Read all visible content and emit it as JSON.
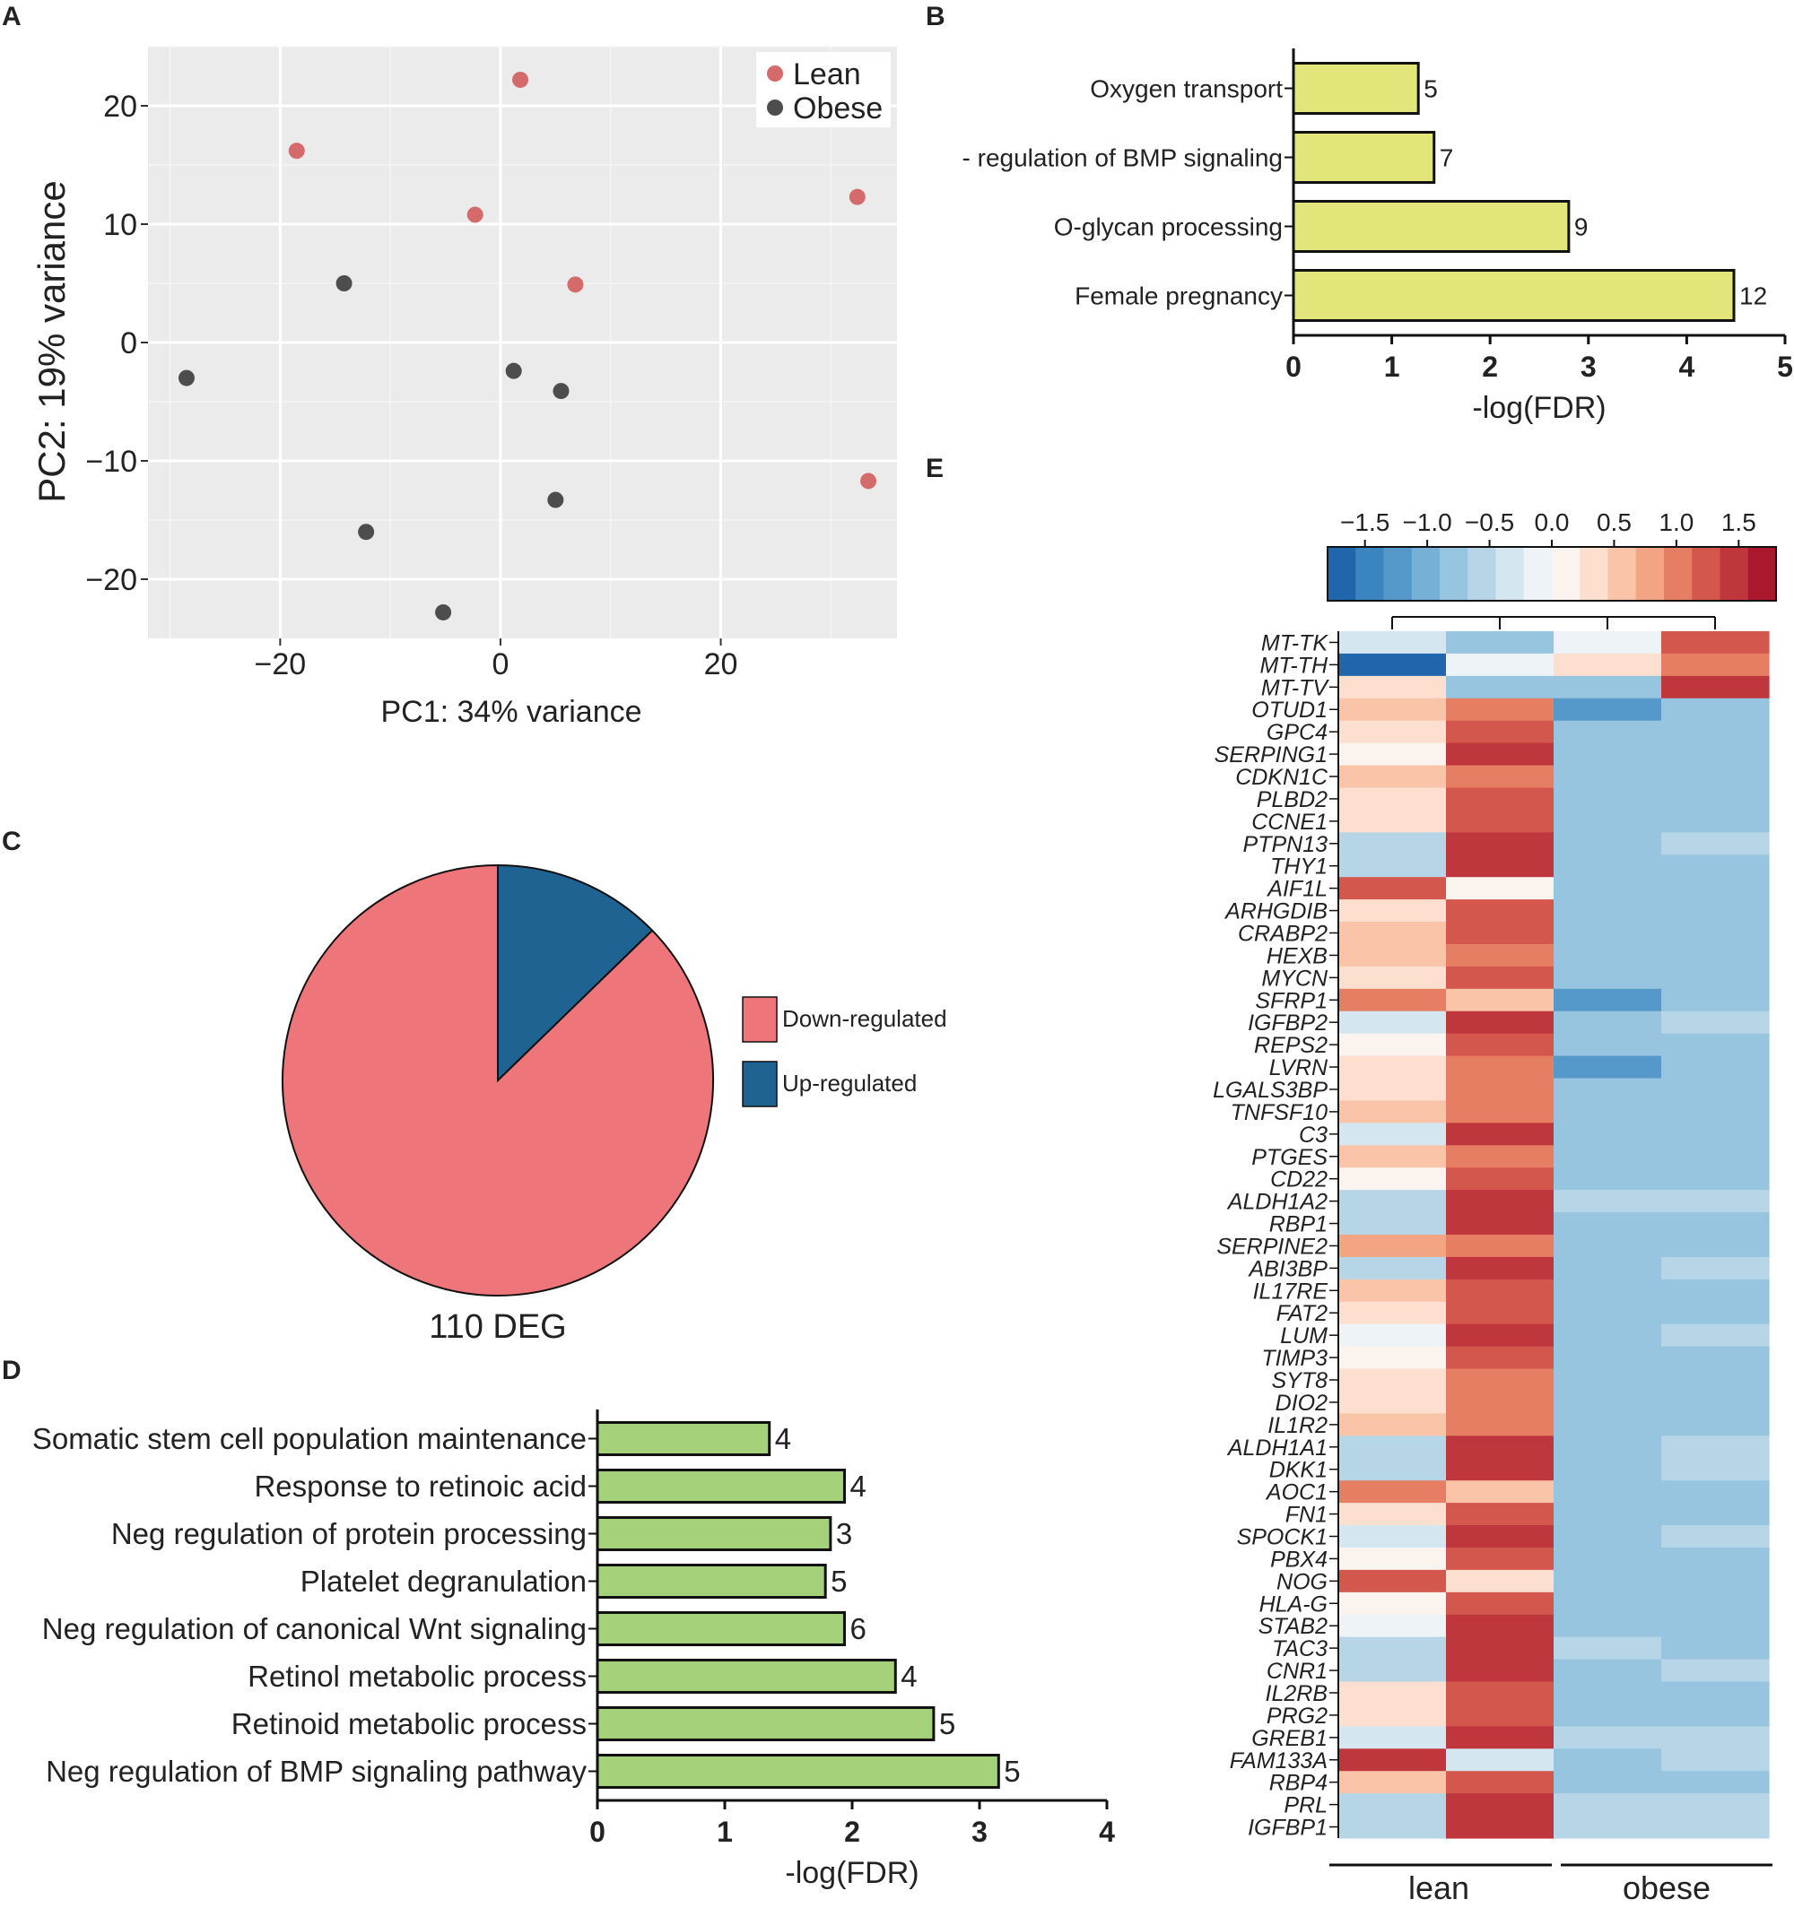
{
  "panel_labels": {
    "a": "A",
    "b": "B",
    "c": "C",
    "d": "D",
    "e": "E"
  },
  "colors": {
    "lean": "#D46A6A",
    "obese": "#4D4D4D",
    "panel_bg": "#EBEBEB",
    "bar_b": "#E2E67A",
    "bar_d": "#A5D17A",
    "pie_down": "#EE7579",
    "pie_up": "#1F6393",
    "heat_scale": [
      "#2166AC",
      "#3A84C0",
      "#5499CA",
      "#76B0D6",
      "#97C4DF",
      "#B6D6E8",
      "#D4E6F0",
      "#EDF3F7",
      "#FAF3EE",
      "#FCDFCF",
      "#F9C4A8",
      "#F3A482",
      "#E57E63",
      "#D3574C",
      "#C0363D",
      "#A9182C"
    ]
  },
  "chart_data": [
    {
      "id": "pca",
      "type": "scatter",
      "xlabel": "PC1: 34% variance",
      "ylabel": "PC2: 19% variance",
      "xlim": [
        -32,
        36
      ],
      "ylim": [
        -25,
        25
      ],
      "xticks": [
        -20,
        0,
        20
      ],
      "yticks": [
        20,
        10,
        0,
        -10,
        -20
      ],
      "xtick_labels": [
        "−20",
        "0",
        "20"
      ],
      "ytick_labels": [
        "20",
        "10",
        "0",
        "−10",
        "−20"
      ],
      "grid": true,
      "legend_position": "top-right",
      "series": [
        {
          "name": "Lean",
          "points": [
            [
              1.8,
              22.2
            ],
            [
              -18.5,
              16.2
            ],
            [
              -2.3,
              10.8
            ],
            [
              6.8,
              4.9
            ],
            [
              32.4,
              12.3
            ],
            [
              33.4,
              -11.7
            ]
          ]
        },
        {
          "name": "Obese",
          "points": [
            [
              -14.2,
              5.0
            ],
            [
              -28.5,
              -3.0
            ],
            [
              1.2,
              -2.4
            ],
            [
              5.5,
              -4.1
            ],
            [
              5.0,
              -13.3
            ],
            [
              -12.2,
              -16.0
            ],
            [
              -5.2,
              -22.8
            ]
          ]
        }
      ]
    },
    {
      "id": "go_b",
      "type": "bar",
      "orientation": "horizontal",
      "categories": [
        "Oxygen transport",
        "- regulation of BMP signaling",
        "O-glycan processing",
        "Female pregnancy"
      ],
      "values": [
        1.27,
        1.43,
        2.8,
        4.48
      ],
      "gene_counts": [
        "5",
        "7",
        "9",
        "12"
      ],
      "xlabel": "-log(FDR)",
      "xlim": [
        0,
        5
      ],
      "xtick_labels": [
        "0",
        "1",
        "2",
        "3",
        "4",
        "5"
      ]
    },
    {
      "id": "deg_pie",
      "type": "pie",
      "title": "110 DEG",
      "labels": [
        "Down-regulated",
        "Up-regulated"
      ],
      "values": [
        96,
        14
      ]
    },
    {
      "id": "go_d",
      "type": "bar",
      "orientation": "horizontal",
      "categories": [
        "Somatic stem cell population maintenance",
        "Response to retinoic acid",
        "Neg regulation of protein processing",
        "Platelet degranulation",
        "Neg regulation of canonical Wnt signaling",
        "Retinol metabolic process",
        "Retinoid metabolic process",
        "Neg regulation of BMP signaling pathway"
      ],
      "values": [
        1.35,
        1.94,
        1.83,
        1.79,
        1.94,
        2.34,
        2.64,
        3.15
      ],
      "gene_counts": [
        "4",
        "4",
        "3",
        "5",
        "6",
        "4",
        "5",
        "5"
      ],
      "xlabel": "-log(FDR)",
      "xlim": [
        0,
        4
      ],
      "xtick_labels": [
        "0",
        "1",
        "2",
        "3",
        "4"
      ]
    },
    {
      "id": "heatmap",
      "type": "heatmap",
      "scale_min": -1.8,
      "scale_max": 1.8,
      "scale_tick_values": [
        -1.5,
        -1.0,
        -0.5,
        0.0,
        0.5,
        1.0,
        1.5
      ],
      "scale_tick_labels": [
        "−1.5",
        "−1.0",
        "−0.5",
        "0.0",
        "0.5",
        "1.0",
        "1.5"
      ],
      "group_labels": [
        "lean",
        "obese"
      ],
      "rows": [
        "MT-TK",
        "MT-TH",
        "MT-TV",
        "OTUD1",
        "GPC4",
        "SERPING1",
        "CDKN1C",
        "PLBD2",
        "CCNE1",
        "PTPN13",
        "THY1",
        "AIF1L",
        "ARHGDIB",
        "CRABP2",
        "HEXB",
        "MYCN",
        "SFRP1",
        "IGFBP2",
        "REPS2",
        "LVRN",
        "LGALS3BP",
        "TNFSF10",
        "C3",
        "PTGES",
        "CD22",
        "ALDH1A2",
        "RBP1",
        "SERPINE2",
        "ABI3BP",
        "IL17RE",
        "FAT2",
        "LUM",
        "TIMP3",
        "SYT8",
        "DIO2",
        "IL1R2",
        "ALDH1A1",
        "DKK1",
        "AOC1",
        "FN1",
        "SPOCK1",
        "PBX4",
        "NOG",
        "HLA-G",
        "STAB2",
        "TAC3",
        "CNR1",
        "IL2RB",
        "PRG2",
        "GREB1",
        "FAM133A",
        "RBP4",
        "PRL",
        "IGFBP1"
      ],
      "values": [
        [
          -0.4,
          -0.9,
          -0.2,
          1.3
        ],
        [
          -1.6,
          -0.15,
          0.3,
          1.1
        ],
        [
          0.3,
          -0.8,
          -0.8,
          1.4
        ],
        [
          0.6,
          1.1,
          -1.2,
          -0.8
        ],
        [
          0.3,
          1.3,
          -0.9,
          -0.8
        ],
        [
          0.0,
          1.5,
          -0.8,
          -0.8
        ],
        [
          0.6,
          0.9,
          -0.9,
          -0.8
        ],
        [
          0.4,
          1.2,
          -0.9,
          -0.8
        ],
        [
          0.3,
          1.3,
          -0.9,
          -0.8
        ],
        [
          -0.5,
          1.5,
          -0.9,
          -0.5
        ],
        [
          -0.5,
          1.5,
          -0.8,
          -0.7
        ],
        [
          1.3,
          0.0,
          -0.8,
          -0.8
        ],
        [
          0.3,
          1.2,
          -0.9,
          -0.8
        ],
        [
          0.5,
          1.2,
          -0.9,
          -0.8
        ],
        [
          0.6,
          1.1,
          -0.9,
          -0.8
        ],
        [
          0.3,
          1.3,
          -0.8,
          -0.8
        ],
        [
          0.9,
          0.6,
          -1.2,
          -0.8
        ],
        [
          -0.4,
          1.5,
          -0.8,
          -0.6
        ],
        [
          0.0,
          1.3,
          -0.8,
          -0.8
        ],
        [
          0.4,
          1.0,
          -1.2,
          -0.7
        ],
        [
          0.4,
          1.0,
          -0.9,
          -0.8
        ],
        [
          0.6,
          0.9,
          -0.9,
          -0.8
        ],
        [
          -0.3,
          1.5,
          -0.8,
          -0.8
        ],
        [
          0.6,
          0.9,
          -0.9,
          -0.9
        ],
        [
          0.1,
          1.3,
          -0.8,
          -0.9
        ],
        [
          -0.5,
          1.5,
          -0.6,
          -0.6
        ],
        [
          -0.5,
          1.5,
          -0.8,
          -0.7
        ],
        [
          0.7,
          1.0,
          -0.9,
          -0.9
        ],
        [
          -0.5,
          1.5,
          -0.8,
          -0.6
        ],
        [
          0.6,
          1.2,
          -0.9,
          -0.9
        ],
        [
          0.3,
          1.3,
          -0.8,
          -0.9
        ],
        [
          -0.2,
          1.5,
          -0.8,
          -0.6
        ],
        [
          0.0,
          1.3,
          -0.8,
          -0.8
        ],
        [
          0.4,
          1.0,
          -0.9,
          -0.8
        ],
        [
          0.4,
          1.0,
          -0.8,
          -0.9
        ],
        [
          0.6,
          1.0,
          -0.9,
          -0.9
        ],
        [
          -0.5,
          1.5,
          -0.8,
          -0.6
        ],
        [
          -0.5,
          1.5,
          -0.8,
          -0.6
        ],
        [
          0.9,
          0.5,
          -0.9,
          -0.9
        ],
        [
          0.3,
          1.2,
          -0.8,
          -0.8
        ],
        [
          -0.3,
          1.5,
          -0.8,
          -0.6
        ],
        [
          0.0,
          1.3,
          -0.8,
          -0.8
        ],
        [
          1.3,
          0.3,
          -0.8,
          -0.9
        ],
        [
          0.1,
          1.3,
          -0.8,
          -0.8
        ],
        [
          -0.2,
          1.5,
          -0.8,
          -0.8
        ],
        [
          -0.5,
          1.5,
          -0.6,
          -0.7
        ],
        [
          -0.5,
          1.5,
          -0.8,
          -0.6
        ],
        [
          0.3,
          1.3,
          -0.8,
          -0.9
        ],
        [
          0.3,
          1.3,
          -0.8,
          -0.9
        ],
        [
          -0.4,
          1.5,
          -0.6,
          -0.6
        ],
        [
          1.5,
          -0.3,
          -0.9,
          -0.6
        ],
        [
          0.5,
          1.2,
          -0.9,
          -0.9
        ],
        [
          -0.5,
          1.5,
          -0.6,
          -0.6
        ],
        [
          -0.5,
          1.5,
          -0.6,
          -0.6
        ]
      ]
    }
  ]
}
